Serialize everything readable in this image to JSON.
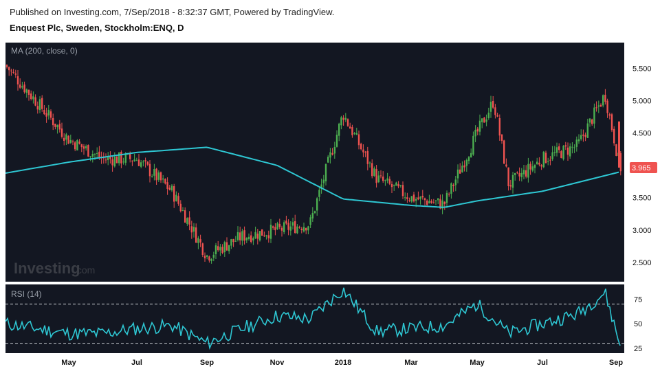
{
  "header": {
    "published": "Published on Investing.com, 7/Sep/2018 - 8:32:37 GMT, Powered by TradingView.",
    "instrument": "Enquest Plc, Sweden, Stockholm:ENQ, D"
  },
  "watermark": {
    "brand": "Investing",
    "suffix": ".com"
  },
  "colors": {
    "background": "#131722",
    "up": "#26a69a",
    "up_bright": "#4caf50",
    "down": "#ef5350",
    "ma": "#2ec7d3",
    "rsi": "#2ec7d3",
    "last_price_badge": "#ef5350"
  },
  "chart_data": [
    {
      "type": "candlestick",
      "title": "MA (200, close, 0)",
      "y_ticks": [
        "5.500",
        "5.000",
        "4.500",
        "4.000",
        "3.500",
        "3.000",
        "2.500"
      ],
      "ylim": [
        2.2,
        5.9
      ],
      "last_price": "3.965",
      "x_tick_labels": [
        "May",
        "Jul",
        "Sep",
        "Nov",
        "2018",
        "Mar",
        "May",
        "Jul",
        "Sep"
      ],
      "price_path": [
        [
          "start",
          5.55
        ],
        [
          "May",
          4.4
        ],
        [
          "Jun",
          4.1
        ],
        [
          "Jul",
          4.1
        ],
        [
          "Aug",
          3.6
        ],
        [
          "Sep",
          2.6
        ],
        [
          "Oct",
          2.9
        ],
        [
          "Nov",
          3.0
        ],
        [
          "Dec",
          3.1
        ],
        [
          "2018",
          4.8
        ],
        [
          "Feb",
          3.8
        ],
        [
          "Mar",
          3.5
        ],
        [
          "Apr",
          3.4
        ],
        [
          "May",
          4.5
        ],
        [
          "May-end",
          5.0
        ],
        [
          "Jun",
          3.7
        ],
        [
          "Jul",
          4.1
        ],
        [
          "Aug",
          4.3
        ],
        [
          "Aug-end",
          5.1
        ],
        [
          "Sep",
          3.965
        ]
      ],
      "ma_series": [
        [
          "start",
          3.88
        ],
        [
          "May",
          4.05
        ],
        [
          "Jul",
          4.2
        ],
        [
          "Sep",
          4.28
        ],
        [
          "Nov",
          4.0
        ],
        [
          "2018",
          3.48
        ],
        [
          "Mar",
          3.38
        ],
        [
          "Apr",
          3.35
        ],
        [
          "May",
          3.45
        ],
        [
          "Jul",
          3.6
        ],
        [
          "Sep",
          3.9
        ]
      ]
    },
    {
      "type": "line",
      "title": "RSI (14)",
      "y_ticks": [
        "75",
        "50",
        "25"
      ],
      "ylim": [
        20,
        90
      ],
      "levels": [
        70,
        30
      ],
      "x_tick_labels": [
        "May",
        "Jul",
        "Sep",
        "Nov",
        "2018",
        "Mar",
        "May",
        "Jul",
        "Sep"
      ],
      "rsi_path": [
        [
          "start",
          50
        ],
        [
          "May",
          40
        ],
        [
          "Jun",
          40
        ],
        [
          "Jul",
          45
        ],
        [
          "Aug",
          48
        ],
        [
          "Sep",
          30
        ],
        [
          "Oct",
          45
        ],
        [
          "Nov",
          58
        ],
        [
          "Dec",
          55
        ],
        [
          "2018",
          85
        ],
        [
          "Feb",
          42
        ],
        [
          "Mar",
          45
        ],
        [
          "Apr",
          48
        ],
        [
          "May",
          70
        ],
        [
          "Jun",
          40
        ],
        [
          "Jul",
          50
        ],
        [
          "Aug",
          60
        ],
        [
          "Aug-end",
          82
        ],
        [
          "Sep",
          28
        ]
      ]
    }
  ]
}
